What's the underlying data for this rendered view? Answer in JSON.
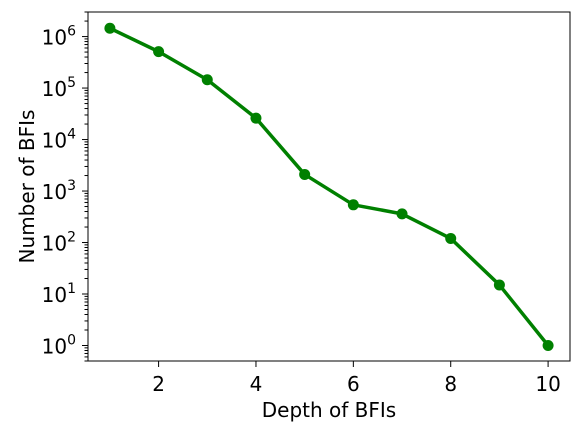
{
  "chart_data": {
    "type": "line",
    "title": "",
    "xlabel": "Depth of BFIs",
    "ylabel": "Number of BFIs",
    "y_scale": "log",
    "xlim": [
      0.55,
      10.45
    ],
    "ylim": [
      0.5,
      3000000
    ],
    "x_ticks": [
      2,
      4,
      6,
      8,
      10
    ],
    "y_ticks": [
      {
        "value": 1,
        "base": "10",
        "exp": "0"
      },
      {
        "value": 10,
        "base": "10",
        "exp": "1"
      },
      {
        "value": 100,
        "base": "10",
        "exp": "2"
      },
      {
        "value": 1000,
        "base": "10",
        "exp": "3"
      },
      {
        "value": 10000,
        "base": "10",
        "exp": "4"
      },
      {
        "value": 100000,
        "base": "10",
        "exp": "5"
      },
      {
        "value": 1000000,
        "base": "10",
        "exp": "6"
      }
    ],
    "grid": false,
    "legend": "none",
    "series": [
      {
        "color": "#008000",
        "x": [
          1,
          2,
          3,
          4,
          5,
          6,
          7,
          8,
          9,
          10
        ],
        "y": [
          1450000,
          510000,
          145000,
          26000,
          2100,
          540,
          360,
          120,
          15,
          1
        ]
      }
    ]
  }
}
